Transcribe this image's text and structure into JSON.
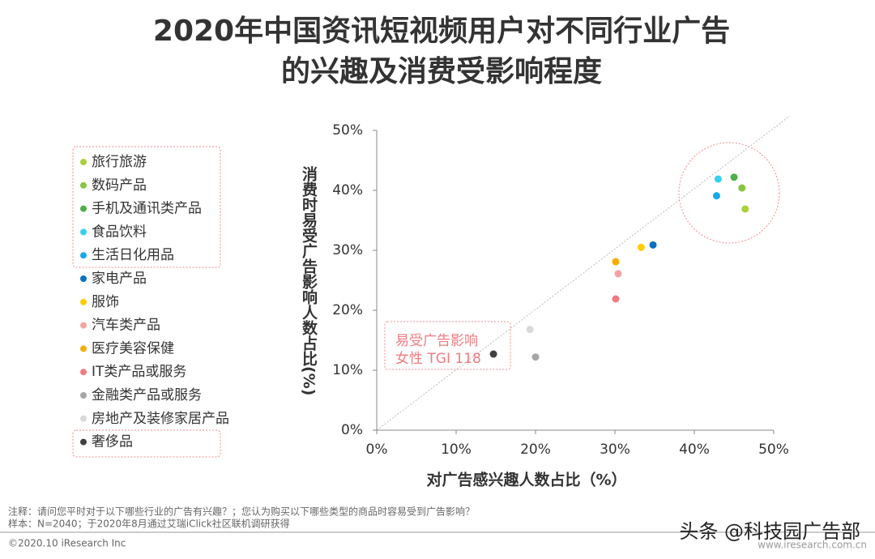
{
  "chart_data": {
    "type": "scatter",
    "title": [
      "2020年中国资讯短视频用户对不同行业广告",
      "的兴趣及消费受影响程度"
    ],
    "xlabel": "对广告感兴趣人数占比（%）",
    "ylabel": "消费时易受广告影响人数占比(%)",
    "xlim": [
      0,
      50
    ],
    "ylim": [
      0,
      50
    ],
    "xticks": [
      {
        "value": 0,
        "label": "0%"
      },
      {
        "value": 10,
        "label": "10%"
      },
      {
        "value": 20,
        "label": "20%"
      },
      {
        "value": 30,
        "label": "30%"
      },
      {
        "value": 40,
        "label": "40%"
      },
      {
        "value": 50,
        "label": "50%"
      }
    ],
    "yticks": [
      {
        "value": 0,
        "label": "0%"
      },
      {
        "value": 10,
        "label": "10%"
      },
      {
        "value": 20,
        "label": "20%"
      },
      {
        "value": 30,
        "label": "30%"
      },
      {
        "value": 40,
        "label": "40%"
      },
      {
        "value": 50,
        "label": "50%"
      }
    ],
    "series": [
      {
        "name": "旅行旅游",
        "color": "#a9d13a",
        "x": [
          46.4
        ],
        "values": [
          36.9
        ]
      },
      {
        "name": "数码产品",
        "color": "#86c541",
        "x": [
          46.0
        ],
        "values": [
          40.4
        ]
      },
      {
        "name": "手机及通讯类产品",
        "color": "#4eae4a",
        "x": [
          45.0
        ],
        "values": [
          42.2
        ]
      },
      {
        "name": "食品饮料",
        "color": "#33d0f0",
        "x": [
          43.0
        ],
        "values": [
          41.9
        ]
      },
      {
        "name": "生活日化用品",
        "color": "#17a9e6",
        "x": [
          42.8
        ],
        "values": [
          39.1
        ]
      },
      {
        "name": "家电产品",
        "color": "#0a70c0",
        "x": [
          34.8
        ],
        "values": [
          30.9
        ]
      },
      {
        "name": "服饰",
        "color": "#ffcc00",
        "x": [
          33.3
        ],
        "values": [
          30.5
        ]
      },
      {
        "name": "汽车类产品",
        "color": "#f4a3a3",
        "x": [
          30.4
        ],
        "values": [
          26.1
        ]
      },
      {
        "name": "医疗美容保健",
        "color": "#f5ad0a",
        "x": [
          30.1
        ],
        "values": [
          28.1
        ]
      },
      {
        "name": "IT类产品或服务",
        "color": "#ef7b80",
        "x": [
          30.1
        ],
        "values": [
          21.9
        ]
      },
      {
        "name": "金融类产品或服务",
        "color": "#a6a6a6",
        "x": [
          20.0
        ],
        "values": [
          12.2
        ]
      },
      {
        "name": "房地产及装修家居产品",
        "color": "#d9d9d9",
        "x": [
          19.3
        ],
        "values": [
          16.8
        ]
      },
      {
        "name": "奢侈品",
        "color": "#404040",
        "x": [
          14.7
        ],
        "values": [
          12.7
        ]
      }
    ],
    "annotation": [
      "易受广告影响",
      "女性 TGI 118"
    ]
  },
  "notes": [
    "注释：请问您平时对于以下哪些行业的广告有兴趣？；您认为购买以下哪些类型的商品时容易受到广告影响？",
    "样本：N=2040；于2020年8月通过艾瑞iClick社区联机调研获得"
  ],
  "footer": {
    "copyright": "©2020.10 iResearch Inc",
    "site": "www.iresearch.com.cn",
    "watermark": "头条 @科技园广告部"
  }
}
